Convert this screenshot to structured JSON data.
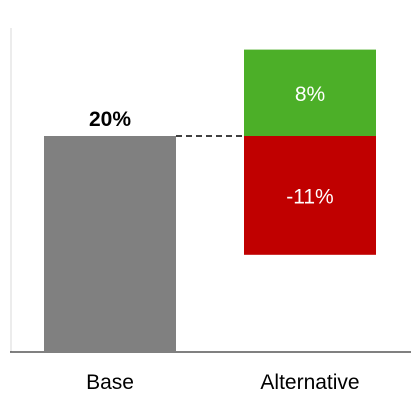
{
  "chart_data": {
    "type": "bar",
    "subtype": "waterfall",
    "categories": [
      "Base",
      "Alternative"
    ],
    "base": {
      "value": 20,
      "label": "20%"
    },
    "alternative": {
      "increase": {
        "value": 8,
        "label": "8%"
      },
      "decrease": {
        "value": -11,
        "label": "-11%"
      }
    },
    "ylim": [
      0,
      30
    ],
    "grid": false,
    "legend": "none",
    "colors": {
      "base": "#808080",
      "increase": "#4caf28",
      "decrease": "#c00000",
      "axis": "#000000",
      "connector": "#000000"
    }
  }
}
